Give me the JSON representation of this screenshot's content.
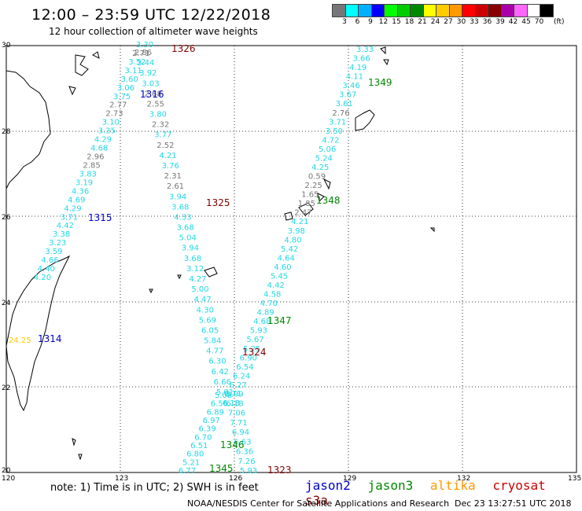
{
  "header": {
    "title": "12:00 – 23:59 UTC 12/22/2018",
    "subtitle": "12 hour collection of altimeter wave heights"
  },
  "colorbar": {
    "unit": "(ft)",
    "bins": [
      {
        "label": "3",
        "color": "#777777"
      },
      {
        "label": "6",
        "color": "#00ffff"
      },
      {
        "label": "9",
        "color": "#00b0ff"
      },
      {
        "label": "12",
        "color": "#0000ff"
      },
      {
        "label": "15",
        "color": "#00ff00"
      },
      {
        "label": "18",
        "color": "#00cc00"
      },
      {
        "label": "21",
        "color": "#008800"
      },
      {
        "label": "24",
        "color": "#ffff00"
      },
      {
        "label": "27",
        "color": "#ffcc00"
      },
      {
        "label": "30",
        "color": "#ff9900"
      },
      {
        "label": "33",
        "color": "#ff0000"
      },
      {
        "label": "36",
        "color": "#cc0000"
      },
      {
        "label": "39",
        "color": "#880000"
      },
      {
        "label": "42",
        "color": "#aa00aa"
      },
      {
        "label": "45",
        "color": "#ff66ff"
      },
      {
        "label": "70",
        "color": "#ffffff"
      },
      {
        "label": "",
        "color": "#000000"
      }
    ]
  },
  "map": {
    "lon_range": [
      120,
      135
    ],
    "lat_range": [
      20,
      30
    ],
    "lon_ticks": [
      "120",
      "123",
      "126",
      "129",
      "132",
      "135"
    ],
    "lat_ticks": [
      "30",
      "28",
      "26",
      "24",
      "22",
      "20"
    ],
    "passes": [
      {
        "id": "1326",
        "color": "#800000"
      },
      {
        "id": "1316",
        "color": "#0000cc"
      },
      {
        "id": "1349",
        "color": "#008800"
      },
      {
        "id": "1325",
        "color": "#800000"
      },
      {
        "id": "1315",
        "color": "#0000cc"
      },
      {
        "id": "1348",
        "color": "#008800"
      },
      {
        "id": "1347",
        "color": "#008800"
      },
      {
        "id": "1314",
        "color": "#0000cc"
      },
      {
        "id": "1324",
        "color": "#800000"
      },
      {
        "id": "1346",
        "color": "#008800"
      },
      {
        "id": "1345",
        "color": "#008800"
      },
      {
        "id": "1323",
        "color": "#800000"
      }
    ],
    "wave_tracks": [
      {
        "name": "track-a",
        "values": [
          "3.30",
          "2.71",
          "3.52",
          "3.11",
          "3.60",
          "3.06",
          "3.75",
          "2.77",
          "2.73",
          "3.10",
          "3.35",
          "4.29",
          "4.68",
          "2.96",
          "2.85",
          "3.83",
          "3.19",
          "4.36",
          "4.69",
          "4.29",
          "3.71",
          "4.42",
          "3.38",
          "3.23",
          "3.59",
          "4.66",
          "4.40",
          "4.20"
        ]
      },
      {
        "name": "track-b",
        "values": [
          "2.86",
          "3.44",
          "3.92",
          "3.03",
          "2.68",
          "2.55",
          "3.80",
          "2.32",
          "3.77",
          "2.52",
          "4.21",
          "3.76",
          "2.31",
          "2.61",
          "3.94",
          "3.68",
          "4.33",
          "3.68",
          "5.04",
          "3.94",
          "3.68",
          "3.12",
          "4.27",
          "5.00",
          "4.47",
          "4.30",
          "5.69",
          "6.05",
          "5.84",
          "4.77",
          "6.30",
          "6.42",
          "6.66",
          "5.01"
        ]
      },
      {
        "name": "track-c",
        "values": [
          "3.33",
          "3.66",
          "4.19",
          "4.11",
          "3.46",
          "3.67",
          "3.61",
          "2.76",
          "3.71",
          "3.50",
          "4.72",
          "5.06",
          "5.24",
          "4.25",
          "0.59",
          "2.25",
          "1.65",
          "1.85",
          "2.47",
          "4.21",
          "3.98",
          "4.80",
          "5.42",
          "4.64",
          "4.60",
          "5.45",
          "4.42",
          "4.58",
          "4.70",
          "4.89",
          "4.68",
          "5.93",
          "5.67",
          "5.25",
          "6.90",
          "6.54",
          "6.24",
          "6.27",
          "5.99",
          "6.18"
        ]
      },
      {
        "name": "track-d",
        "values": [
          "5.08",
          "6.56",
          "6.89",
          "6.97",
          "6.39",
          "6.70",
          "6.51",
          "6.80",
          "5.21",
          "6.77"
        ]
      },
      {
        "name": "track-e",
        "values": [
          "6.71",
          "6.18",
          "7.06",
          "7.71",
          "6.94",
          "6.63",
          "6.36",
          "7.26",
          "5.93"
        ]
      }
    ],
    "edge_value": {
      "value": "24.25",
      "color": "#ffcc00"
    }
  },
  "footer": {
    "note": "note:  1) Time is in UTC;  2) SWH is in feet",
    "satellites": [
      {
        "name": "jason2",
        "color": "#0000cc"
      },
      {
        "name": "jason3",
        "color": "#008800"
      },
      {
        "name": "altika",
        "color": "#ff9900"
      },
      {
        "name": "cryosat",
        "color": "#cc0000"
      },
      {
        "name": "s3a",
        "color": "#880000"
      }
    ],
    "credit": "NOAA/NESDIS Center for Satellite Applications and Research",
    "timestamp": "Dec 23 13:27:51 UTC 2018"
  }
}
